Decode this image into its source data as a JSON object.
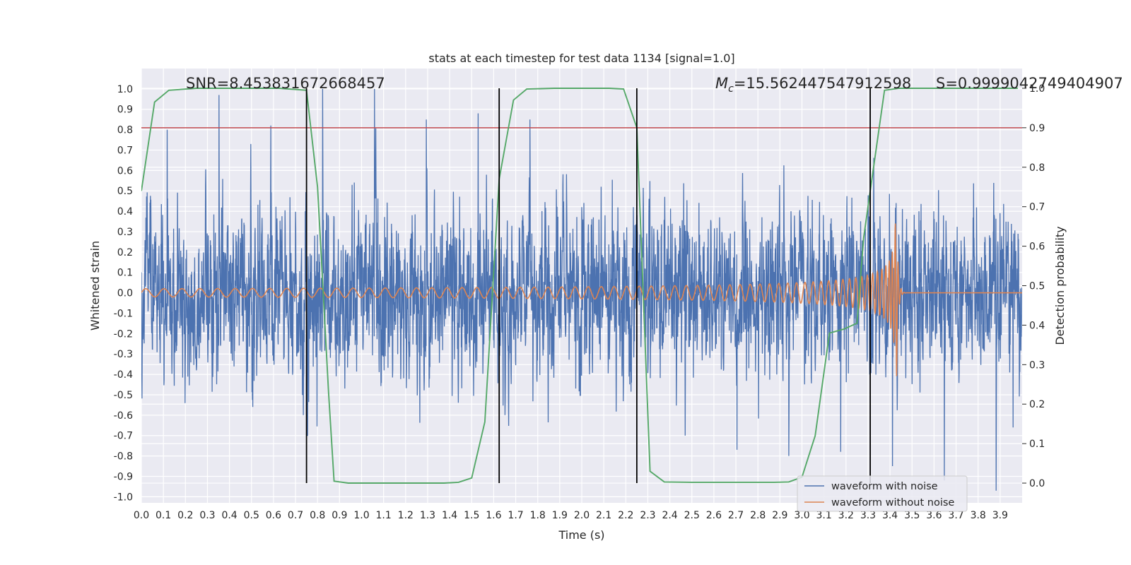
{
  "chart_data": {
    "type": "line",
    "title": "stats at each timestep for test data 1134 [signal=1.0]",
    "xlabel": "Time (s)",
    "ylabel": "Whitened strain",
    "y2label": "Detection probability",
    "xlim": [
      0.0,
      4.0
    ],
    "ylim": [
      -1.03,
      1.1
    ],
    "y2lim": [
      -0.05,
      1.05
    ],
    "xticks": [
      "0.0",
      "0.1",
      "0.2",
      "0.3",
      "0.4",
      "0.5",
      "0.6",
      "0.7",
      "0.8",
      "0.9",
      "1.0",
      "1.1",
      "1.2",
      "1.3",
      "1.4",
      "1.5",
      "1.6",
      "1.7",
      "1.8",
      "1.9",
      "2.0",
      "2.1",
      "2.2",
      "2.3",
      "2.4",
      "2.5",
      "2.6",
      "2.7",
      "2.8",
      "2.9",
      "3.0",
      "3.1",
      "3.2",
      "3.3",
      "3.4",
      "3.5",
      "3.6",
      "3.7",
      "3.8",
      "3.9"
    ],
    "yticks": [
      "-1.0",
      "-0.9",
      "-0.8",
      "-0.7",
      "-0.6",
      "-0.5",
      "-0.4",
      "-0.3",
      "-0.2",
      "-0.1",
      "0.0",
      "0.1",
      "0.2",
      "0.3",
      "0.4",
      "0.5",
      "0.6",
      "0.7",
      "0.8",
      "0.9",
      "1.0"
    ],
    "y2ticks": [
      "0.0",
      "0.1",
      "0.2",
      "0.3",
      "0.4",
      "0.5",
      "0.6",
      "0.7",
      "0.8",
      "0.9",
      "1.0"
    ],
    "grid": true,
    "legend_position": "lower-right",
    "annotations": {
      "snr": "SNR=8.453831672668457",
      "mc_symbol": "M",
      "mc_sub": "c",
      "mc_value": "=15.562447547912598",
      "s": "S=0.9999042749404907"
    },
    "series": [
      {
        "name": "waveform with noise",
        "axis": "left",
        "color": "#4c72b0",
        "style": "noise",
        "sample_rate": 2048,
        "amplitude_std": 0.2,
        "peak_values": [
          0.8,
          0.97,
          0.82,
          1.0,
          1.0,
          0.85,
          0.88,
          0.85,
          0.42,
          0.42,
          -0.7,
          -0.77,
          -0.8,
          -0.78,
          -0.85,
          -0.92,
          -0.97
        ]
      },
      {
        "name": "waveform without noise",
        "axis": "left",
        "color": "#dd8452",
        "style": "chirp",
        "merger_time": 3.43,
        "initial_amplitude": 0.02,
        "peak_amplitude": 0.41,
        "initial_frequency": 12,
        "peak_frequency": 75,
        "ringdown_end": 3.45
      },
      {
        "name": "Detection probability",
        "axis": "right",
        "color": "#55a868",
        "style": "line",
        "x": [
          0.0,
          0.06,
          0.125,
          0.25,
          0.375,
          0.5,
          0.625,
          0.75,
          0.8,
          0.85,
          0.875,
          0.94,
          1.0,
          1.125,
          1.25,
          1.375,
          1.44,
          1.5,
          1.56,
          1.625,
          1.69,
          1.75,
          1.875,
          2.0,
          2.125,
          2.19,
          2.25,
          2.31,
          2.375,
          2.5,
          2.625,
          2.75,
          2.875,
          2.94,
          3.0,
          3.06,
          3.125,
          3.19,
          3.25,
          3.28,
          3.31,
          3.375,
          3.44,
          3.5,
          3.625,
          3.75,
          3.875,
          3.98
        ],
        "y": [
          0.74,
          0.965,
          0.995,
          1.0,
          1.0,
          1.0,
          1.0,
          0.995,
          0.75,
          0.23,
          0.005,
          0.0,
          0.0,
          0.0,
          0.0,
          0.0,
          0.002,
          0.013,
          0.155,
          0.77,
          0.97,
          0.998,
          1.0,
          1.0,
          1.0,
          0.998,
          0.9,
          0.03,
          0.003,
          0.002,
          0.002,
          0.002,
          0.002,
          0.003,
          0.015,
          0.12,
          0.38,
          0.39,
          0.405,
          0.62,
          0.74,
          0.995,
          1.0,
          1.0,
          1.0,
          1.0,
          1.0,
          1.0
        ]
      }
    ],
    "threshold": {
      "axis": "right",
      "value": 0.9,
      "color": "#c44e52"
    },
    "vertical_markers": {
      "color": "#000000",
      "x": [
        0.75,
        1.625,
        2.25,
        3.31
      ],
      "y_range": [
        0.0,
        1.0
      ]
    }
  }
}
